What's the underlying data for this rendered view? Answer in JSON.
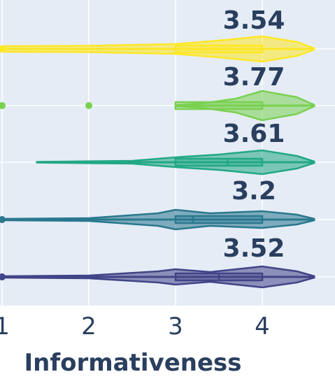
{
  "chart_data": {
    "type": "violin",
    "orientation": "horizontal",
    "xlabel": "Informativeness",
    "xlim": [
      1,
      4.6
    ],
    "xticks": [
      "1",
      "2",
      "3",
      "4"
    ],
    "grid": true,
    "series": [
      {
        "mean_label": "3.54",
        "mean": 3.54,
        "q1": 3.0,
        "median": 4.0,
        "q3": 4.0,
        "min": 1.0,
        "max": 4.6,
        "outliers": [
          1.0
        ],
        "color": "#fde725"
      },
      {
        "mean_label": "3.77",
        "mean": 3.77,
        "q1": 3.0,
        "median": 4.0,
        "q3": 4.0,
        "min": 3.0,
        "max": 4.6,
        "outliers": [
          1.0,
          2.0
        ],
        "color": "#7ad151"
      },
      {
        "mean_label": "3.61",
        "mean": 3.61,
        "q1": 3.0,
        "median": 3.6,
        "q3": 4.0,
        "min": 1.4,
        "max": 4.6,
        "outliers": [],
        "color": "#22a884"
      },
      {
        "mean_label": "3.2",
        "mean": 3.2,
        "q1": 3.0,
        "median": 3.2,
        "q3": 4.0,
        "min": 1.0,
        "max": 4.6,
        "outliers": [
          1.0
        ],
        "color": "#2a788e"
      },
      {
        "mean_label": "3.52",
        "mean": 3.52,
        "q1": 3.0,
        "median": 3.5,
        "q3": 4.0,
        "min": 1.0,
        "max": 4.6,
        "outliers": [
          1.0
        ],
        "color": "#414487"
      }
    ]
  }
}
